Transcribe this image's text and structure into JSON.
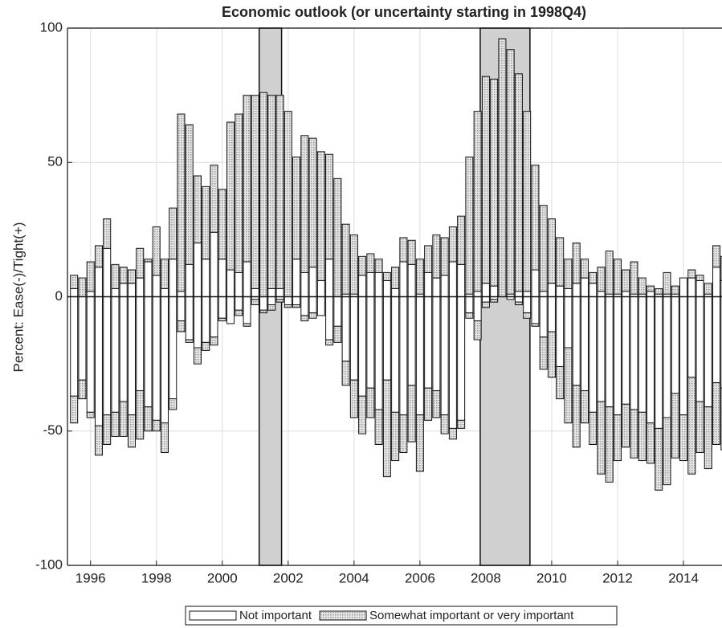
{
  "chart_data": {
    "type": "bar",
    "title": "Economic outlook (or uncertainty starting in 1998Q4)",
    "y_label": "Percent:  Ease(-)/Tight(+)",
    "x": [
      1995.5,
      1995.75,
      1996,
      1996.25,
      1996.5,
      1996.75,
      1997,
      1997.25,
      1997.5,
      1997.75,
      1998,
      1998.25,
      1998.5,
      1998.75,
      1999,
      1999.25,
      1999.5,
      1999.75,
      2000,
      2000.25,
      2000.5,
      2000.75,
      2001,
      2001.25,
      2001.5,
      2001.75,
      2002,
      2002.25,
      2002.5,
      2002.75,
      2003,
      2003.25,
      2003.5,
      2003.75,
      2004,
      2004.25,
      2004.5,
      2004.75,
      2005,
      2005.25,
      2005.5,
      2005.75,
      2006,
      2006.25,
      2006.5,
      2006.75,
      2007,
      2007.25,
      2007.5,
      2007.75,
      2008,
      2008.25,
      2008.5,
      2008.75,
      2009,
      2009.25,
      2009.5,
      2009.75,
      2010,
      2010.25,
      2010.5,
      2010.75,
      2011,
      2011.25,
      2011.5,
      2011.75,
      2012,
      2012.25,
      2012.5,
      2012.75,
      2013,
      2013.25,
      2013.5,
      2013.75,
      2014,
      2014.25,
      2014.5,
      2014.75,
      2015,
      2015.25
    ],
    "series": [
      {
        "name": "Not important",
        "color": "#ffffff",
        "values": [
          3,
          0,
          2,
          11,
          18,
          3,
          5,
          5,
          7,
          13,
          8,
          3,
          14,
          2,
          12,
          20,
          14,
          24,
          14,
          10,
          9,
          13,
          3,
          0,
          3,
          3,
          0,
          14,
          9,
          11,
          6,
          14,
          0,
          1,
          1,
          8,
          9,
          9,
          6,
          3,
          13,
          12,
          1,
          9,
          7,
          8,
          13,
          12,
          1,
          2,
          5,
          4,
          0,
          1,
          2,
          2,
          10,
          2,
          5,
          4,
          3,
          5,
          7,
          5,
          2,
          1,
          1,
          2,
          1,
          1,
          2,
          1,
          1,
          1,
          7,
          7,
          6,
          1,
          11,
          6
        ],
        "ease_values": [
          -37,
          -31,
          -43,
          -48,
          -44,
          -43,
          -39,
          -44,
          -35,
          -41,
          -46,
          -47,
          -38,
          -9,
          -16,
          -19,
          -17,
          -15,
          -8,
          -10,
          -5,
          -10,
          -1,
          -5,
          -3,
          -1,
          -3,
          -3,
          -7,
          -6,
          -7,
          -16,
          -11,
          -24,
          -31,
          -37,
          -34,
          -42,
          -31,
          -43,
          -44,
          -33,
          -44,
          -34,
          -35,
          -44,
          -49,
          -46,
          -6,
          -9,
          -2,
          -1,
          0,
          -1,
          -2,
          -6,
          -10,
          -15,
          -13,
          -26,
          -19,
          -33,
          -35,
          -43,
          -39,
          -41,
          -44,
          -40,
          -42,
          -43,
          -47,
          -49,
          -45,
          -36,
          -44,
          -30,
          -39,
          -41,
          -32,
          -34
        ]
      },
      {
        "name": "Somewhat important or very important",
        "color": "#9a9a9a",
        "values": [
          5,
          7,
          11,
          8,
          11,
          9,
          6,
          5,
          11,
          1,
          18,
          11,
          19,
          66,
          52,
          25,
          27,
          25,
          26,
          55,
          59,
          62,
          72,
          76,
          72,
          72,
          69,
          38,
          51,
          48,
          48,
          39,
          44,
          26,
          22,
          7,
          7,
          5,
          3,
          8,
          9,
          9,
          13,
          10,
          16,
          14,
          13,
          18,
          51,
          67,
          77,
          77,
          96,
          91,
          81,
          67,
          39,
          32,
          24,
          18,
          11,
          15,
          7,
          4,
          9,
          16,
          13,
          8,
          12,
          6,
          2,
          2,
          8,
          3,
          0,
          3,
          2,
          4,
          8,
          9
        ],
        "ease_values": [
          -10,
          -7,
          -2,
          -11,
          -11,
          -9,
          -13,
          -12,
          -18,
          -9,
          -4,
          -11,
          -4,
          -4,
          -1,
          -6,
          -3,
          -3,
          -1,
          0,
          -2,
          -1,
          -2,
          -1,
          -2,
          -1,
          -1,
          -1,
          -2,
          -2,
          0,
          -2,
          -6,
          -9,
          -14,
          -14,
          -11,
          -13,
          -36,
          -18,
          -14,
          -21,
          -21,
          -12,
          -10,
          -7,
          -4,
          -3,
          -2,
          -7,
          -2,
          -1,
          0,
          0,
          -1,
          -2,
          -1,
          -12,
          -17,
          -12,
          -28,
          -23,
          -12,
          -12,
          -27,
          -28,
          -17,
          -16,
          -18,
          -18,
          -15,
          -23,
          -25,
          -24,
          -17,
          -36,
          -19,
          -23,
          -23,
          -23
        ]
      }
    ],
    "shaded_regions": [
      [
        2001.12,
        2001.8
      ],
      [
        2007.83,
        2009.34
      ]
    ],
    "shade_color": "#d0d0d0",
    "xlim": [
      1995.3,
      2015.17
    ],
    "ylim": [
      -100,
      100
    ],
    "xticks": [
      1996,
      1998,
      2000,
      2002,
      2004,
      2006,
      2008,
      2010,
      2012,
      2014
    ],
    "yticks": [
      -100,
      -50,
      0,
      50,
      100
    ],
    "grid": true
  }
}
